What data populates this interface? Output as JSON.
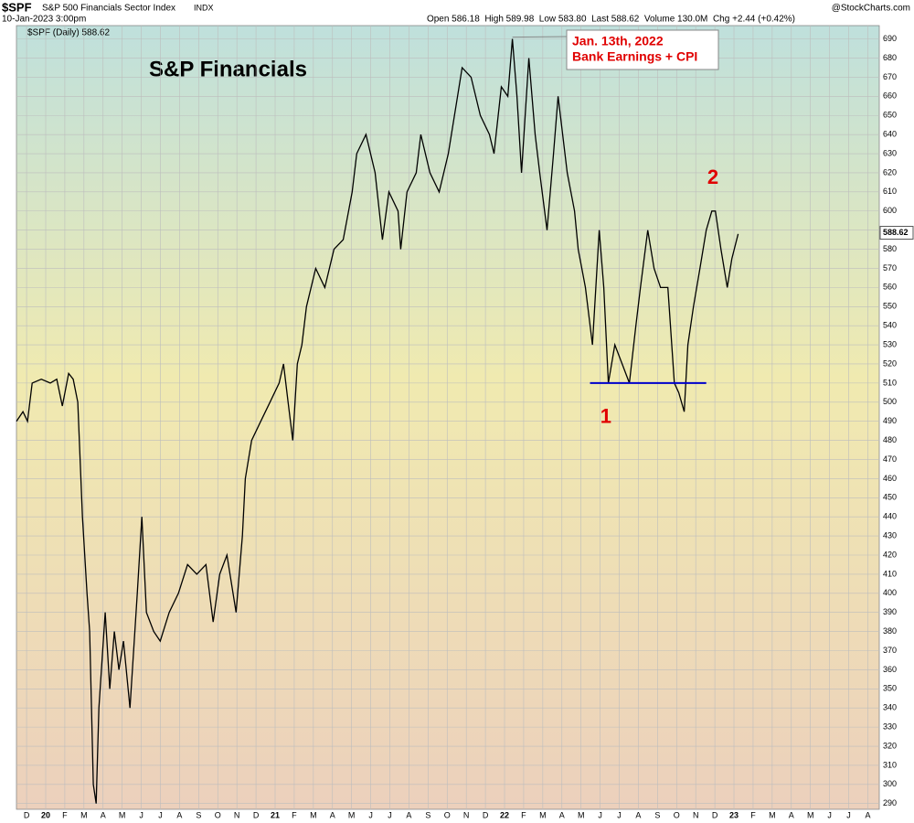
{
  "chart_data": {
    "type": "line",
    "symbol": "$SPF",
    "subtitle": "S&P 500 Financials Sector Index",
    "exchange": "INDX",
    "date": "10-Jan-2023 3:00pm",
    "quote": "Open 586.18  High 589.98  Low 583.80  Last 588.62  Volume 130.0M  Chg +2.44 (+0.42%)",
    "source": "@StockCharts.com",
    "legend": "$SPF (Daily) 588.62",
    "title": "S&P Financials",
    "last": 588.62,
    "annotations": [
      {
        "text": [
          "Jan. 13th, 2022",
          "Bank Earnings + CPI"
        ],
        "x": 25.41,
        "y": 690
      },
      {
        "text": "1",
        "x": 30.3,
        "y": 492
      },
      {
        "text": "2",
        "x": 35.9,
        "y": 617
      }
    ],
    "hline": {
      "value": 510,
      "x": [
        29.47,
        35.55
      ],
      "color": "#0000cc"
    },
    "series": [
      {
        "name": "$SPF",
        "color": "#000000",
        "x": [
          -0.53,
          -0.19,
          0.05,
          0.29,
          0.77,
          1.24,
          1.58,
          1.87,
          2.2,
          2.44,
          2.68,
          2.92,
          3.16,
          3.3,
          3.49,
          3.64,
          3.78,
          4.11,
          4.35,
          4.59,
          4.83,
          5.07,
          5.41,
          5.79,
          6.03,
          6.27,
          6.65,
          6.99,
          7.46,
          7.94,
          8.42,
          8.9,
          9.38,
          9.76,
          10.1,
          10.48,
          10.96,
          11.29,
          11.44,
          11.77,
          12.25,
          12.73,
          13.21,
          13.44,
          13.68,
          13.92,
          14.16,
          14.4,
          14.64,
          15.12,
          15.6,
          16.08,
          16.56,
          17.03,
          17.27,
          17.75,
          18.23,
          18.61,
          18.95,
          19.43,
          19.57,
          19.9,
          20.38,
          20.62,
          21.1,
          21.58,
          22.06,
          22.54,
          22.78,
          23.25,
          23.73,
          24.21,
          24.45,
          24.83,
          25.17,
          25.41,
          25.65,
          25.89,
          26.27,
          26.6,
          26.84,
          27.22,
          27.56,
          27.8,
          28.28,
          28.66,
          28.85,
          29.23,
          29.6,
          29.95,
          30.19,
          30.43,
          30.77,
          31.15,
          31.53,
          31.87,
          32.11,
          32.49,
          32.82,
          33.16,
          33.54,
          33.88,
          34.11,
          34.4,
          34.59,
          34.88,
          35.22,
          35.55,
          35.84,
          36.03,
          36.32,
          36.65,
          36.89,
          37.22
        ],
        "values": [
          490,
          495,
          490,
          510,
          512,
          510,
          512,
          498,
          515,
          512,
          500,
          440,
          400,
          380,
          300,
          290,
          340,
          390,
          350,
          380,
          360,
          375,
          340,
          400,
          440,
          390,
          380,
          375,
          390,
          400,
          415,
          410,
          415,
          385,
          410,
          420,
          390,
          430,
          460,
          480,
          490,
          500,
          510,
          520,
          500,
          480,
          520,
          530,
          550,
          570,
          560,
          580,
          585,
          610,
          630,
          640,
          620,
          585,
          610,
          600,
          580,
          610,
          620,
          640,
          620,
          610,
          630,
          660,
          675,
          670,
          650,
          640,
          630,
          665,
          660,
          690,
          660,
          620,
          680,
          640,
          620,
          590,
          630,
          660,
          620,
          600,
          580,
          560,
          530,
          590,
          560,
          510,
          530,
          520,
          510,
          540,
          560,
          590,
          570,
          560,
          560,
          510,
          505,
          495,
          530,
          550,
          570,
          590,
          600,
          600,
          580,
          560,
          575,
          588
        ]
      }
    ],
    "xlim": [
      -0.53,
      44.6
    ],
    "xticks": [
      {
        "value": 0,
        "label": "D"
      },
      {
        "value": 1,
        "label": "20"
      },
      {
        "value": 2,
        "label": "F"
      },
      {
        "value": 3,
        "label": "M"
      },
      {
        "value": 4,
        "label": "A"
      },
      {
        "value": 5,
        "label": "M"
      },
      {
        "value": 6,
        "label": "J"
      },
      {
        "value": 7,
        "label": "J"
      },
      {
        "value": 8,
        "label": "A"
      },
      {
        "value": 9,
        "label": "S"
      },
      {
        "value": 10,
        "label": "O"
      },
      {
        "value": 11,
        "label": "N"
      },
      {
        "value": 12,
        "label": "D"
      },
      {
        "value": 13,
        "label": "21"
      },
      {
        "value": 14,
        "label": "F"
      },
      {
        "value": 15,
        "label": "M"
      },
      {
        "value": 16,
        "label": "A"
      },
      {
        "value": 17,
        "label": "M"
      },
      {
        "value": 18,
        "label": "J"
      },
      {
        "value": 19,
        "label": "J"
      },
      {
        "value": 20,
        "label": "A"
      },
      {
        "value": 21,
        "label": "S"
      },
      {
        "value": 22,
        "label": "O"
      },
      {
        "value": 23,
        "label": "N"
      },
      {
        "value": 24,
        "label": "D"
      },
      {
        "value": 25,
        "label": "22"
      },
      {
        "value": 26,
        "label": "F"
      },
      {
        "value": 27,
        "label": "M"
      },
      {
        "value": 28,
        "label": "A"
      },
      {
        "value": 29,
        "label": "M"
      },
      {
        "value": 30,
        "label": "J"
      },
      {
        "value": 31,
        "label": "J"
      },
      {
        "value": 32,
        "label": "A"
      },
      {
        "value": 33,
        "label": "S"
      },
      {
        "value": 34,
        "label": "O"
      },
      {
        "value": 35,
        "label": "N"
      },
      {
        "value": 36,
        "label": "D"
      },
      {
        "value": 37,
        "label": "23"
      },
      {
        "value": 38,
        "label": "F"
      },
      {
        "value": 39,
        "label": "M"
      },
      {
        "value": 40,
        "label": "A"
      },
      {
        "value": 41,
        "label": "M"
      },
      {
        "value": 42,
        "label": "J"
      },
      {
        "value": 43,
        "label": "J"
      },
      {
        "value": 44,
        "label": "A"
      }
    ],
    "ylim": [
      287,
      697
    ],
    "yticks": [
      290,
      300,
      310,
      320,
      330,
      340,
      350,
      360,
      370,
      380,
      390,
      400,
      410,
      420,
      430,
      440,
      450,
      460,
      470,
      480,
      490,
      500,
      510,
      520,
      530,
      540,
      550,
      560,
      570,
      580,
      590,
      600,
      610,
      620,
      630,
      640,
      650,
      660,
      670,
      680,
      690
    ],
    "grid": true
  }
}
